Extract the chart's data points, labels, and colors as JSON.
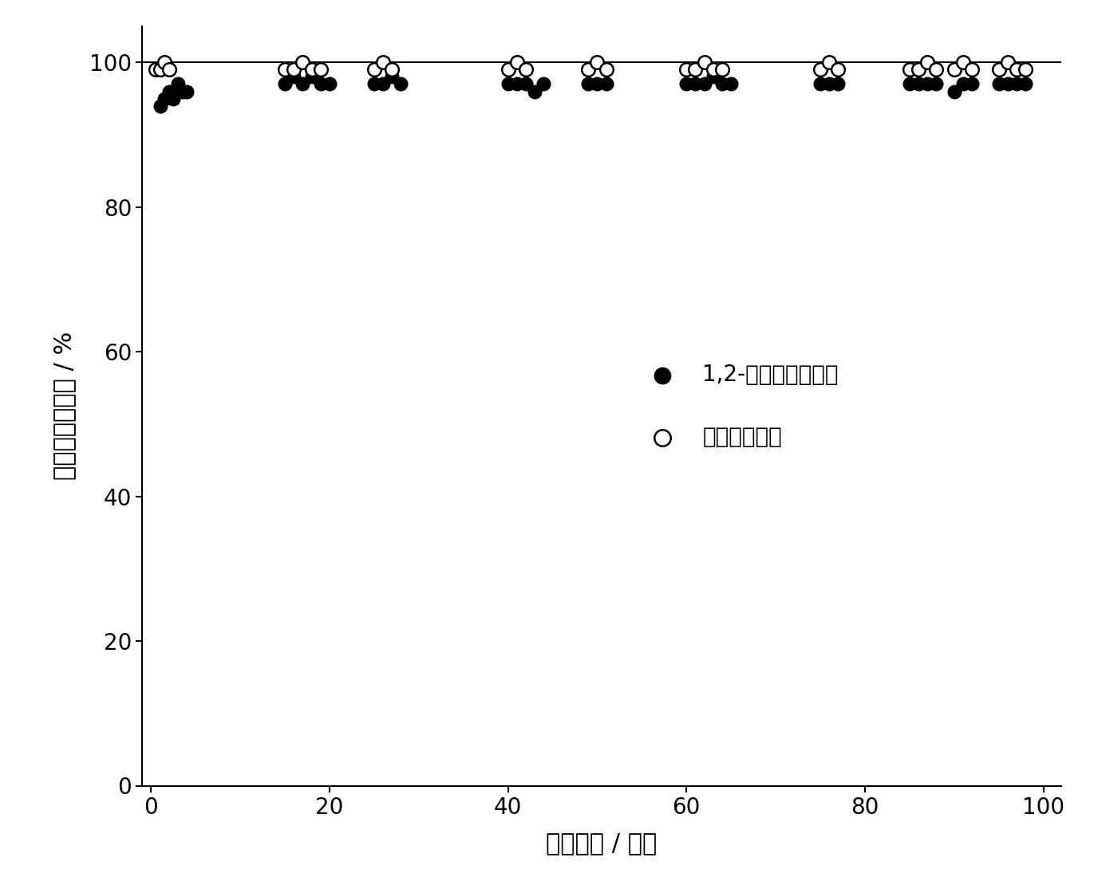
{
  "xlabel": "反应时间 / 小时",
  "ylabel": "转化率与选择性 / %",
  "xlim": [
    -1,
    102
  ],
  "ylim": [
    0,
    105
  ],
  "yticks": [
    0,
    20,
    40,
    60,
    80,
    100
  ],
  "xticks": [
    0,
    20,
    40,
    60,
    80,
    100
  ],
  "legend1_label": "1,2-二氯乙烷转化率",
  "legend2_label": "氯乙烯选择性",
  "filled_x": [
    1,
    1.5,
    2,
    2.5,
    3,
    3.5,
    4,
    15,
    16,
    17,
    18,
    19,
    20,
    25,
    26,
    27,
    28,
    40,
    41,
    42,
    43,
    44,
    49,
    50,
    51,
    60,
    61,
    62,
    63,
    64,
    65,
    75,
    76,
    77,
    85,
    86,
    87,
    88,
    90,
    91,
    92,
    95,
    96,
    97,
    98
  ],
  "filled_y": [
    94,
    95,
    96,
    95,
    97,
    96,
    96,
    97,
    98,
    97,
    98,
    97,
    97,
    97,
    97,
    98,
    97,
    97,
    97,
    97,
    96,
    97,
    97,
    97,
    97,
    97,
    97,
    97,
    98,
    97,
    97,
    97,
    97,
    97,
    97,
    97,
    97,
    97,
    96,
    97,
    97,
    97,
    97,
    97,
    97
  ],
  "open_x": [
    0.5,
    1,
    1.5,
    2,
    15,
    16,
    17,
    18,
    19,
    25,
    26,
    27,
    40,
    41,
    42,
    49,
    50,
    51,
    60,
    61,
    62,
    63,
    64,
    75,
    76,
    77,
    85,
    86,
    87,
    88,
    90,
    91,
    92,
    95,
    96,
    97,
    98
  ],
  "open_y": [
    99,
    99,
    100,
    99,
    99,
    99,
    100,
    99,
    99,
    99,
    100,
    99,
    99,
    100,
    99,
    99,
    100,
    99,
    99,
    99,
    100,
    99,
    99,
    99,
    100,
    99,
    99,
    99,
    100,
    99,
    99,
    100,
    99,
    99,
    100,
    99,
    99
  ],
  "hline_y": 100,
  "marker_size": 12,
  "font_size_label": 22,
  "font_size_tick": 20,
  "font_size_legend": 20,
  "line_color": "black",
  "filled_color": "black",
  "open_facecolor": "white",
  "open_edgecolor": "black"
}
